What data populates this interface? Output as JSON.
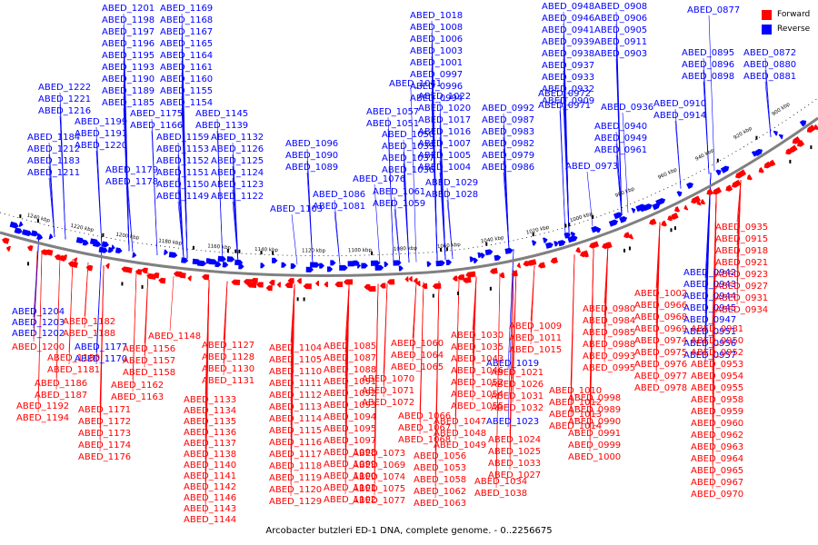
{
  "caption": "Arcobacter butzleri ED-1 DNA, complete genome. - 0..2256675",
  "legend": [
    {
      "label": "Forward",
      "color": "#ff0000"
    },
    {
      "label": "Reverse",
      "color": "#0000ff"
    }
  ],
  "colors": {
    "forward": "#ff0000",
    "reverse": "#0000ff",
    "backbone": "#808080",
    "tick": "#000000"
  },
  "scale_labels": [
    "1240 kbp",
    "1220 kbp",
    "1200 kbp",
    "1180 kbp",
    "1160 kbp",
    "1140 kbp",
    "1120 kbp",
    "1100 kbp",
    "1080 kbp",
    "1060 kbp",
    "1040 kbp",
    "1020 kbp",
    "1000 kbp",
    "980 kbp",
    "960 kbp",
    "940 kbp",
    "920 kbp",
    "900 kbp"
  ],
  "reverse_labels": [
    "ABED_1201",
    "ABED_1198",
    "ABED_1197",
    "ABED_1196",
    "ABED_1195",
    "ABED_1193",
    "ABED_1190",
    "ABED_1189",
    "ABED_1185",
    "ABED_1222",
    "ABED_1221",
    "ABED_1216",
    "ABED_1199",
    "ABED_1191",
    "ABED_1220",
    "ABED_1184",
    "ABED_1212",
    "ABED_1183",
    "ABED_1211",
    "ABED_1179",
    "ABED_1178",
    "ABED_1169",
    "ABED_1168",
    "ABED_1167",
    "ABED_1165",
    "ABED_1164",
    "ABED_1161",
    "ABED_1160",
    "ABED_1155",
    "ABED_1154",
    "ABED_1175",
    "ABED_1166",
    "ABED_1159",
    "ABED_1153",
    "ABED_1152",
    "ABED_1151",
    "ABED_1150",
    "ABED_1149",
    "ABED_1145",
    "ABED_1139",
    "ABED_1132",
    "ABED_1126",
    "ABED_1125",
    "ABED_1124",
    "ABED_1123",
    "ABED_1122",
    "ABED_1096",
    "ABED_1090",
    "ABED_1089",
    "ABED_1076",
    "ABED_1086",
    "ABED_1081",
    "ABED_1103",
    "ABED_1041",
    "ABED_1057",
    "ABED_1051",
    "ABED_1050",
    "ABED_1039",
    "ABED_1037",
    "ABED_1036",
    "ABED_1061",
    "ABED_1059",
    "ABED_1029",
    "ABED_1028",
    "ABED_1018",
    "ABED_1008",
    "ABED_1006",
    "ABED_1003",
    "ABED_1001",
    "ABED_0997",
    "ABED_0996",
    "ABED_0994",
    "ABED_1022",
    "ABED_1020",
    "ABED_1017",
    "ABED_1016",
    "ABED_1007",
    "ABED_1005",
    "ABED_1004",
    "ABED_0992",
    "ABED_0987",
    "ABED_0983",
    "ABED_0982",
    "ABED_0979",
    "ABED_0986",
    "ABED_0948",
    "ABED_0946",
    "ABED_0941",
    "ABED_0939",
    "ABED_0938",
    "ABED_0937",
    "ABED_0933",
    "ABED_0932",
    "ABED_0909",
    "ABED_0908",
    "ABED_0906",
    "ABED_0905",
    "ABED_0911",
    "ABED_0903",
    "ABED_0972",
    "ABED_0971",
    "ABED_0936",
    "ABED_0940",
    "ABED_0949",
    "ABED_0961",
    "ABED_0973",
    "ABED_0910",
    "ABED_0914",
    "ABED_0877",
    "ABED_0895",
    "ABED_0896",
    "ABED_0898",
    "ABED_0872",
    "ABED_0880",
    "ABED_0881",
    "ABED_1204",
    "ABED_1203",
    "ABED_1202",
    "ABED_1177",
    "ABED_1170",
    "ABED_1019",
    "ABED_1023",
    "ABED_0942",
    "ABED_0943",
    "ABED_0944",
    "ABED_0945",
    "ABED_0947",
    "ABED_0951",
    "ABED_0956",
    "ABED_0957"
  ],
  "forward_labels": [
    "ABED_1182",
    "ABED_1188",
    "ABED_1200",
    "ABED_1180",
    "ABED_1181",
    "ABED_1186",
    "ABED_1187",
    "ABED_1192",
    "ABED_1194",
    "ABED_1171",
    "ABED_1172",
    "ABED_1173",
    "ABED_1174",
    "ABED_1176",
    "ABED_1156",
    "ABED_1157",
    "ABED_1158",
    "ABED_1162",
    "ABED_1163",
    "ABED_1148",
    "ABED_1127",
    "ABED_1128",
    "ABED_1130",
    "ABED_1131",
    "ABED_1133",
    "ABED_1134",
    "ABED_1135",
    "ABED_1136",
    "ABED_1137",
    "ABED_1138",
    "ABED_1140",
    "ABED_1141",
    "ABED_1142",
    "ABED_1146",
    "ABED_1143",
    "ABED_1144",
    "ABED_1104",
    "ABED_1105",
    "ABED_1110",
    "ABED_1111",
    "ABED_1112",
    "ABED_1113",
    "ABED_1114",
    "ABED_1115",
    "ABED_1116",
    "ABED_1117",
    "ABED_1118",
    "ABED_1119",
    "ABED_1120",
    "ABED_1129",
    "ABED_1085",
    "ABED_1087",
    "ABED_1088",
    "ABED_1091",
    "ABED_1092",
    "ABED_1093",
    "ABED_1094",
    "ABED_1095",
    "ABED_1097",
    "ABED_1098",
    "ABED_1099",
    "ABED_1100",
    "ABED_1101",
    "ABED_1102",
    "ABED_1060",
    "ABED_1064",
    "ABED_1065",
    "ABED_1070",
    "ABED_1071",
    "ABED_1072",
    "ABED_1066",
    "ABED_1067",
    "ABED_1068",
    "ABED_1073",
    "ABED_1069",
    "ABED_1074",
    "ABED_1075",
    "ABED_1077",
    "ABED_1030",
    "ABED_1035",
    "ABED_1043",
    "ABED_1046",
    "ABED_1052",
    "ABED_1054",
    "ABED_1055",
    "ABED_1047",
    "ABED_1048",
    "ABED_1049",
    "ABED_1056",
    "ABED_1053",
    "ABED_1058",
    "ABED_1062",
    "ABED_1063",
    "ABED_1009",
    "ABED_1011",
    "ABED_1015",
    "ABED_1021",
    "ABED_1026",
    "ABED_1031",
    "ABED_1032",
    "ABED_1024",
    "ABED_1025",
    "ABED_1033",
    "ABED_1027",
    "ABED_1034",
    "ABED_1038",
    "ABED_1010",
    "ABED_1012",
    "ABED_1013",
    "ABED_1014",
    "ABED_0980",
    "ABED_0984",
    "ABED_0985",
    "ABED_0988",
    "ABED_0993",
    "ABED_0995",
    "ABED_0998",
    "ABED_0989",
    "ABED_0990",
    "ABED_0991",
    "ABED_0999",
    "ABED_1000",
    "ABED_1002",
    "ABED_0966",
    "ABED_0968",
    "ABED_0969",
    "ABED_0974",
    "ABED_0975",
    "ABED_0976",
    "ABED_0977",
    "ABED_0978",
    "ABED_0981",
    "ABED_0950",
    "ABED_0952",
    "ABED_0953",
    "ABED_0954",
    "ABED_0955",
    "ABED_0958",
    "ABED_0959",
    "ABED_0960",
    "ABED_0962",
    "ABED_0963",
    "ABED_0964",
    "ABED_0965",
    "ABED_0967",
    "ABED_0970",
    "ABED_0935",
    "ABED_0915",
    "ABED_0918",
    "ABED_0921",
    "ABED_0923",
    "ABED_0927",
    "ABED_0931",
    "ABED_0934"
  ]
}
